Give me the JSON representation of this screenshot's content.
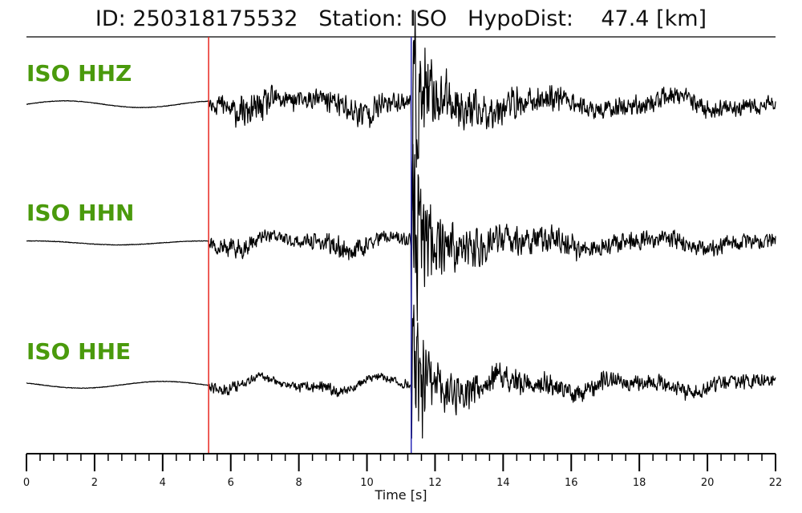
{
  "header": {
    "id_label": "ID:",
    "id_value": "250318175532",
    "station_label": "Station:",
    "station_value": "ISO",
    "hypo_label": "HypoDist:",
    "hypo_value": "47.4",
    "hypo_unit": "[km]"
  },
  "chart_data": {
    "type": "line",
    "title": "ID: 250318175532   Station: ISO   HypoDist:    47.4 [km]",
    "xlabel": "Time [s]",
    "xlim": [
      0,
      22
    ],
    "xticks": [
      0,
      2,
      4,
      6,
      8,
      10,
      12,
      14,
      16,
      18,
      20,
      22
    ],
    "minor_tick_step": 0.4,
    "grid": false,
    "markers": [
      {
        "x": 5.35,
        "color": "#e8261f"
      },
      {
        "x": 11.3,
        "color": "#2b2bb8"
      }
    ],
    "label_color": "#4a9a0c",
    "trace_color": "#000000",
    "series": [
      {
        "name": "ISO HHZ",
        "seed": 11,
        "pre_amp": 0.12,
        "p_noise": 0.42,
        "s_noise": 1.0,
        "s_peak": 1.9,
        "coda_noise": 0.22,
        "pre_period": 4.5,
        "post_amp": 0.22
      },
      {
        "name": "ISO HHN",
        "seed": 23,
        "pre_amp": 0.07,
        "p_noise": 0.28,
        "s_noise": 1.1,
        "s_peak": 1.8,
        "coda_noise": 0.2,
        "pre_period": 5.0,
        "post_amp": 0.18
      },
      {
        "name": "ISO HHE",
        "seed": 37,
        "pre_amp": 0.12,
        "p_noise": 0.16,
        "s_noise": 0.8,
        "s_peak": 2.3,
        "coda_noise": 0.2,
        "pre_period": 4.8,
        "post_amp": 0.2
      }
    ]
  }
}
